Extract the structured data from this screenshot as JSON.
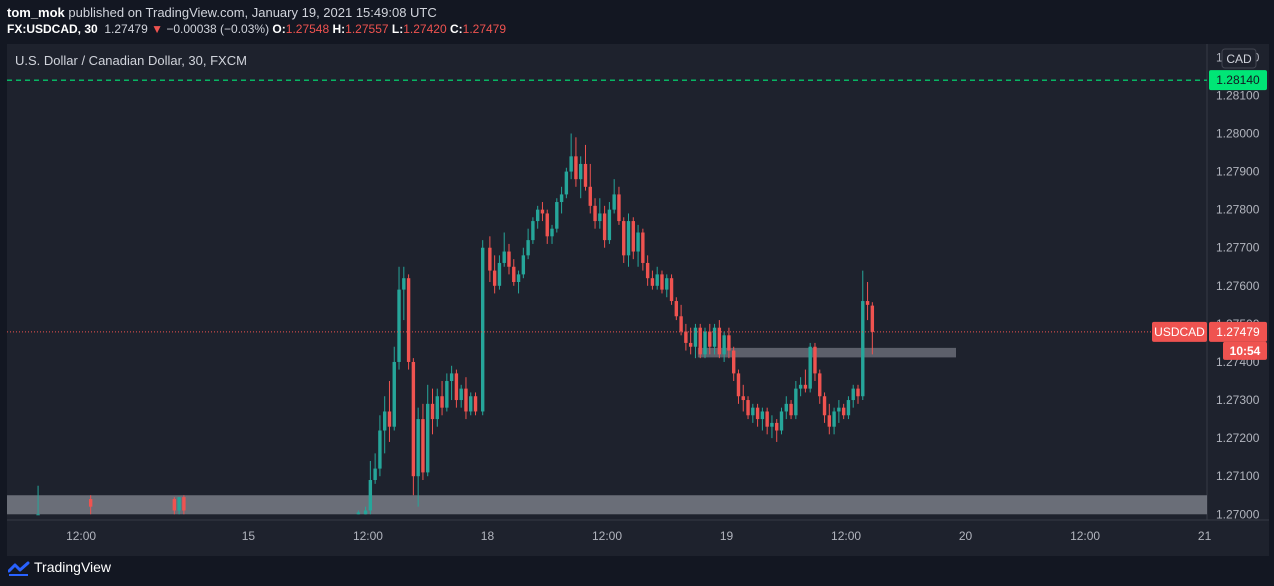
{
  "header": {
    "author": "tom_mok",
    "published_text": "published on TradingView.com, January 19, 2021 15:49:08 UTC",
    "symbol": "FX:USDCAD, 30",
    "last": "1.27479",
    "arrow": "▼",
    "change": "−0.00038 (−0.03%)",
    "o_label": "O:",
    "o_value": "1.27548",
    "h_label": "H:",
    "h_value": "1.27557",
    "l_label": "L:",
    "l_value": "1.27420",
    "c_label": "C:",
    "c_value": "1.27479"
  },
  "chart_title": "U.S. Dollar / Canadian Dollar, 30, FXCM",
  "currency_badge": "CAD",
  "footer": {
    "brand": "TradingView"
  },
  "colors": {
    "up": "#26a69a",
    "down": "#ef5350",
    "bg": "#1e222d",
    "green_line": "#00e676",
    "zone": "#787b86"
  },
  "chart_data": {
    "type": "candlestick",
    "title": "U.S. Dollar / Canadian Dollar, 30, FXCM",
    "ylim": [
      1.26985,
      1.28235
    ],
    "y_ticks": [
      "1.28200",
      "1.28100",
      "1.28000",
      "1.27900",
      "1.27800",
      "1.27700",
      "1.27600",
      "1.27500",
      "1.27400",
      "1.27300",
      "1.27200",
      "1.27100",
      "1.27000"
    ],
    "x_ticks": [
      {
        "label": "12:00",
        "x": -3.5
      },
      {
        "label": "15",
        "x": 0
      },
      {
        "label": "12:00",
        "x": 2.5
      },
      {
        "label": "18",
        "x": 5
      },
      {
        "label": "12:00",
        "x": 7.5
      },
      {
        "label": "19",
        "x": 10
      },
      {
        "label": "12:00",
        "x": 12.5
      },
      {
        "label": "20",
        "x": 15
      },
      {
        "label": "12:00",
        "x": 17.5
      },
      {
        "label": "21",
        "x": 20
      }
    ],
    "x_range": [
      -5.05,
      20.05
    ],
    "horizontal_line": {
      "value": 1.2814,
      "label": "1.28140",
      "style": "dashed"
    },
    "last_price": {
      "value": 1.27479,
      "label": "1.27479",
      "symbol": "USDCAD",
      "countdown": "10:54"
    },
    "zones": [
      {
        "x0": -5.05,
        "x1": 20.05,
        "y0": 1.27,
        "y1": 1.2705
      },
      {
        "x0": 9.4,
        "x1": 14.8,
        "y0": 1.27412,
        "y1": 1.27437
      }
    ],
    "candles": [
      {
        "x": -4.4,
        "o": 1.27,
        "h": 1.27075,
        "l": 1.27,
        "c": 1.27
      },
      {
        "x": -3.3,
        "o": 1.2704,
        "h": 1.2705,
        "l": 1.27,
        "c": 1.2702
      },
      {
        "x": -1.55,
        "o": 1.2704,
        "h": 1.27045,
        "l": 1.27,
        "c": 1.2701
      },
      {
        "x": -1.45,
        "o": 1.2701,
        "h": 1.27045,
        "l": 1.27,
        "c": 1.27045
      },
      {
        "x": -1.35,
        "o": 1.27045,
        "h": 1.2705,
        "l": 1.27,
        "c": 1.2701
      },
      {
        "x": 2.3,
        "o": 1.27,
        "h": 1.2701,
        "l": 1.27,
        "c": 1.27005
      },
      {
        "x": 2.45,
        "o": 1.27,
        "h": 1.2702,
        "l": 1.27,
        "c": 1.2701
      },
      {
        "x": 2.55,
        "o": 1.2701,
        "h": 1.2714,
        "l": 1.27,
        "c": 1.2709
      },
      {
        "x": 2.65,
        "o": 1.2709,
        "h": 1.2716,
        "l": 1.2708,
        "c": 1.2712
      },
      {
        "x": 2.75,
        "o": 1.2712,
        "h": 1.2726,
        "l": 1.271,
        "c": 1.2722
      },
      {
        "x": 2.85,
        "o": 1.2722,
        "h": 1.2731,
        "l": 1.2716,
        "c": 1.2727
      },
      {
        "x": 2.95,
        "o": 1.2727,
        "h": 1.2735,
        "l": 1.2719,
        "c": 1.2723
      },
      {
        "x": 3.05,
        "o": 1.2723,
        "h": 1.2744,
        "l": 1.2722,
        "c": 1.274
      },
      {
        "x": 3.15,
        "o": 1.274,
        "h": 1.2765,
        "l": 1.2738,
        "c": 1.2759
      },
      {
        "x": 3.25,
        "o": 1.2759,
        "h": 1.2765,
        "l": 1.2751,
        "c": 1.2762
      },
      {
        "x": 3.35,
        "o": 1.2762,
        "h": 1.2763,
        "l": 1.2738,
        "c": 1.274
      },
      {
        "x": 3.45,
        "o": 1.274,
        "h": 1.2741,
        "l": 1.2705,
        "c": 1.271
      },
      {
        "x": 3.55,
        "o": 1.271,
        "h": 1.2728,
        "l": 1.2702,
        "c": 1.2725
      },
      {
        "x": 3.65,
        "o": 1.2725,
        "h": 1.2729,
        "l": 1.2709,
        "c": 1.2711
      },
      {
        "x": 3.75,
        "o": 1.2711,
        "h": 1.2734,
        "l": 1.271,
        "c": 1.2729
      },
      {
        "x": 3.85,
        "o": 1.2729,
        "h": 1.2733,
        "l": 1.2721,
        "c": 1.2725
      },
      {
        "x": 3.95,
        "o": 1.2725,
        "h": 1.2733,
        "l": 1.2723,
        "c": 1.2731
      },
      {
        "x": 4.05,
        "o": 1.2731,
        "h": 1.2735,
        "l": 1.2726,
        "c": 1.2728
      },
      {
        "x": 4.15,
        "o": 1.2728,
        "h": 1.2737,
        "l": 1.2727,
        "c": 1.2735
      },
      {
        "x": 4.25,
        "o": 1.2735,
        "h": 1.2739,
        "l": 1.273,
        "c": 1.2737
      },
      {
        "x": 4.35,
        "o": 1.2737,
        "h": 1.2738,
        "l": 1.2728,
        "c": 1.273
      },
      {
        "x": 4.45,
        "o": 1.273,
        "h": 1.2734,
        "l": 1.2728,
        "c": 1.2733
      },
      {
        "x": 4.55,
        "o": 1.2733,
        "h": 1.2736,
        "l": 1.2725,
        "c": 1.2727
      },
      {
        "x": 4.65,
        "o": 1.2727,
        "h": 1.2732,
        "l": 1.2726,
        "c": 1.2731
      },
      {
        "x": 4.75,
        "o": 1.2731,
        "h": 1.2732,
        "l": 1.2726,
        "c": 1.2727
      },
      {
        "x": 4.9,
        "o": 1.2727,
        "h": 1.2772,
        "l": 1.2726,
        "c": 1.277
      },
      {
        "x": 5.05,
        "o": 1.277,
        "h": 1.2773,
        "l": 1.2761,
        "c": 1.2764
      },
      {
        "x": 5.15,
        "o": 1.2764,
        "h": 1.2768,
        "l": 1.2758,
        "c": 1.276
      },
      {
        "x": 5.25,
        "o": 1.276,
        "h": 1.2768,
        "l": 1.2759,
        "c": 1.2766
      },
      {
        "x": 5.35,
        "o": 1.2766,
        "h": 1.2774,
        "l": 1.2765,
        "c": 1.2769
      },
      {
        "x": 5.45,
        "o": 1.2769,
        "h": 1.2771,
        "l": 1.2763,
        "c": 1.2765
      },
      {
        "x": 5.55,
        "o": 1.2765,
        "h": 1.2767,
        "l": 1.276,
        "c": 1.2761
      },
      {
        "x": 5.65,
        "o": 1.2761,
        "h": 1.2764,
        "l": 1.2758,
        "c": 1.2763
      },
      {
        "x": 5.75,
        "o": 1.2763,
        "h": 1.277,
        "l": 1.2762,
        "c": 1.2768
      },
      {
        "x": 5.85,
        "o": 1.2768,
        "h": 1.2775,
        "l": 1.2767,
        "c": 1.2772
      },
      {
        "x": 5.95,
        "o": 1.2772,
        "h": 1.2778,
        "l": 1.2771,
        "c": 1.2777
      },
      {
        "x": 6.05,
        "o": 1.2777,
        "h": 1.2781,
        "l": 1.2775,
        "c": 1.278
      },
      {
        "x": 6.15,
        "o": 1.278,
        "h": 1.2782,
        "l": 1.2777,
        "c": 1.2779
      },
      {
        "x": 6.25,
        "o": 1.2779,
        "h": 1.278,
        "l": 1.2771,
        "c": 1.2773
      },
      {
        "x": 6.35,
        "o": 1.2773,
        "h": 1.2776,
        "l": 1.2771,
        "c": 1.2775
      },
      {
        "x": 6.45,
        "o": 1.2775,
        "h": 1.2783,
        "l": 1.2774,
        "c": 1.2782
      },
      {
        "x": 6.55,
        "o": 1.2782,
        "h": 1.2786,
        "l": 1.2779,
        "c": 1.2784
      },
      {
        "x": 6.65,
        "o": 1.2784,
        "h": 1.2791,
        "l": 1.2783,
        "c": 1.279
      },
      {
        "x": 6.75,
        "o": 1.279,
        "h": 1.28,
        "l": 1.2788,
        "c": 1.2794
      },
      {
        "x": 6.85,
        "o": 1.2794,
        "h": 1.2799,
        "l": 1.2786,
        "c": 1.2788
      },
      {
        "x": 6.95,
        "o": 1.2788,
        "h": 1.2794,
        "l": 1.2783,
        "c": 1.2792
      },
      {
        "x": 7.05,
        "o": 1.2792,
        "h": 1.2797,
        "l": 1.2785,
        "c": 1.2786
      },
      {
        "x": 7.15,
        "o": 1.2786,
        "h": 1.2792,
        "l": 1.2779,
        "c": 1.2781
      },
      {
        "x": 7.25,
        "o": 1.2781,
        "h": 1.2783,
        "l": 1.2775,
        "c": 1.2777
      },
      {
        "x": 7.35,
        "o": 1.2777,
        "h": 1.2783,
        "l": 1.2775,
        "c": 1.2779
      },
      {
        "x": 7.45,
        "o": 1.2779,
        "h": 1.2781,
        "l": 1.277,
        "c": 1.2772
      },
      {
        "x": 7.55,
        "o": 1.2772,
        "h": 1.2782,
        "l": 1.2771,
        "c": 1.278
      },
      {
        "x": 7.65,
        "o": 1.278,
        "h": 1.2788,
        "l": 1.2779,
        "c": 1.2784
      },
      {
        "x": 7.75,
        "o": 1.2784,
        "h": 1.2786,
        "l": 1.2776,
        "c": 1.2777
      },
      {
        "x": 7.85,
        "o": 1.2777,
        "h": 1.2778,
        "l": 1.2766,
        "c": 1.2768
      },
      {
        "x": 7.95,
        "o": 1.2768,
        "h": 1.2779,
        "l": 1.2765,
        "c": 1.2777
      },
      {
        "x": 8.05,
        "o": 1.2777,
        "h": 1.2778,
        "l": 1.2767,
        "c": 1.2769
      },
      {
        "x": 8.15,
        "o": 1.2769,
        "h": 1.2776,
        "l": 1.2765,
        "c": 1.2774
      },
      {
        "x": 8.25,
        "o": 1.2774,
        "h": 1.2775,
        "l": 1.2764,
        "c": 1.2766
      },
      {
        "x": 8.35,
        "o": 1.2766,
        "h": 1.2768,
        "l": 1.276,
        "c": 1.2762
      },
      {
        "x": 8.45,
        "o": 1.2762,
        "h": 1.2764,
        "l": 1.2759,
        "c": 1.276
      },
      {
        "x": 8.55,
        "o": 1.276,
        "h": 1.2765,
        "l": 1.2759,
        "c": 1.2763
      },
      {
        "x": 8.65,
        "o": 1.2763,
        "h": 1.2764,
        "l": 1.2758,
        "c": 1.2759
      },
      {
        "x": 8.75,
        "o": 1.2759,
        "h": 1.2763,
        "l": 1.2757,
        "c": 1.2762
      },
      {
        "x": 8.85,
        "o": 1.2762,
        "h": 1.2763,
        "l": 1.2755,
        "c": 1.2756
      },
      {
        "x": 8.95,
        "o": 1.2756,
        "h": 1.2757,
        "l": 1.2751,
        "c": 1.2752
      },
      {
        "x": 9.05,
        "o": 1.2752,
        "h": 1.2755,
        "l": 1.2747,
        "c": 1.2748
      },
      {
        "x": 9.15,
        "o": 1.2748,
        "h": 1.275,
        "l": 1.2743,
        "c": 1.2745
      },
      {
        "x": 9.25,
        "o": 1.2745,
        "h": 1.2749,
        "l": 1.2742,
        "c": 1.2744
      },
      {
        "x": 9.35,
        "o": 1.2744,
        "h": 1.275,
        "l": 1.2741,
        "c": 1.2749
      },
      {
        "x": 9.45,
        "o": 1.2749,
        "h": 1.275,
        "l": 1.2741,
        "c": 1.2742
      },
      {
        "x": 9.55,
        "o": 1.2742,
        "h": 1.2749,
        "l": 1.2741,
        "c": 1.2748
      },
      {
        "x": 9.65,
        "o": 1.2748,
        "h": 1.275,
        "l": 1.2742,
        "c": 1.2744
      },
      {
        "x": 9.75,
        "o": 1.2744,
        "h": 1.275,
        "l": 1.2742,
        "c": 1.2749
      },
      {
        "x": 9.85,
        "o": 1.2749,
        "h": 1.2751,
        "l": 1.2741,
        "c": 1.2742
      },
      {
        "x": 9.95,
        "o": 1.2742,
        "h": 1.2748,
        "l": 1.274,
        "c": 1.2747
      },
      {
        "x": 10.05,
        "o": 1.2747,
        "h": 1.2749,
        "l": 1.2741,
        "c": 1.2743
      },
      {
        "x": 10.15,
        "o": 1.2743,
        "h": 1.2744,
        "l": 1.2735,
        "c": 1.2737
      },
      {
        "x": 10.25,
        "o": 1.2737,
        "h": 1.2738,
        "l": 1.2729,
        "c": 1.2731
      },
      {
        "x": 10.35,
        "o": 1.2731,
        "h": 1.2734,
        "l": 1.2727,
        "c": 1.273
      },
      {
        "x": 10.45,
        "o": 1.273,
        "h": 1.2731,
        "l": 1.2725,
        "c": 1.2726
      },
      {
        "x": 10.55,
        "o": 1.2726,
        "h": 1.2729,
        "l": 1.2724,
        "c": 1.2728
      },
      {
        "x": 10.65,
        "o": 1.2728,
        "h": 1.2729,
        "l": 1.2723,
        "c": 1.2725
      },
      {
        "x": 10.75,
        "o": 1.2725,
        "h": 1.2728,
        "l": 1.2722,
        "c": 1.2727
      },
      {
        "x": 10.85,
        "o": 1.2727,
        "h": 1.2728,
        "l": 1.2721,
        "c": 1.2723
      },
      {
        "x": 10.95,
        "o": 1.2723,
        "h": 1.2726,
        "l": 1.272,
        "c": 1.2724
      },
      {
        "x": 11.05,
        "o": 1.2724,
        "h": 1.2725,
        "l": 1.2719,
        "c": 1.2722
      },
      {
        "x": 11.15,
        "o": 1.2722,
        "h": 1.2728,
        "l": 1.2721,
        "c": 1.2727
      },
      {
        "x": 11.25,
        "o": 1.2727,
        "h": 1.2731,
        "l": 1.2725,
        "c": 1.2729
      },
      {
        "x": 11.35,
        "o": 1.2729,
        "h": 1.273,
        "l": 1.2725,
        "c": 1.2726
      },
      {
        "x": 11.45,
        "o": 1.2726,
        "h": 1.2735,
        "l": 1.2725,
        "c": 1.2733
      },
      {
        "x": 11.55,
        "o": 1.2733,
        "h": 1.2736,
        "l": 1.2731,
        "c": 1.2734
      },
      {
        "x": 11.65,
        "o": 1.2734,
        "h": 1.2738,
        "l": 1.2732,
        "c": 1.2733
      },
      {
        "x": 11.75,
        "o": 1.2733,
        "h": 1.2745,
        "l": 1.2732,
        "c": 1.2744
      },
      {
        "x": 11.85,
        "o": 1.2744,
        "h": 1.2745,
        "l": 1.2735,
        "c": 1.2737
      },
      {
        "x": 11.95,
        "o": 1.2737,
        "h": 1.2738,
        "l": 1.2729,
        "c": 1.2731
      },
      {
        "x": 12.05,
        "o": 1.2731,
        "h": 1.2732,
        "l": 1.2724,
        "c": 1.2726
      },
      {
        "x": 12.15,
        "o": 1.2726,
        "h": 1.2729,
        "l": 1.2721,
        "c": 1.2723
      },
      {
        "x": 12.25,
        "o": 1.2723,
        "h": 1.2728,
        "l": 1.2721,
        "c": 1.2727
      },
      {
        "x": 12.35,
        "o": 1.2727,
        "h": 1.273,
        "l": 1.2724,
        "c": 1.2728
      },
      {
        "x": 12.45,
        "o": 1.2728,
        "h": 1.2729,
        "l": 1.2725,
        "c": 1.2726
      },
      {
        "x": 12.55,
        "o": 1.2726,
        "h": 1.2731,
        "l": 1.2725,
        "c": 1.273
      },
      {
        "x": 12.65,
        "o": 1.273,
        "h": 1.2734,
        "l": 1.2728,
        "c": 1.2733
      },
      {
        "x": 12.75,
        "o": 1.2733,
        "h": 1.2734,
        "l": 1.2729,
        "c": 1.2731
      },
      {
        "x": 12.85,
        "o": 1.2731,
        "h": 1.2764,
        "l": 1.273,
        "c": 1.2756
      },
      {
        "x": 12.95,
        "o": 1.2756,
        "h": 1.2761,
        "l": 1.2751,
        "c": 1.2755
      },
      {
        "x": 13.05,
        "o": 1.27548,
        "h": 1.27557,
        "l": 1.2742,
        "c": 1.27479
      }
    ]
  }
}
